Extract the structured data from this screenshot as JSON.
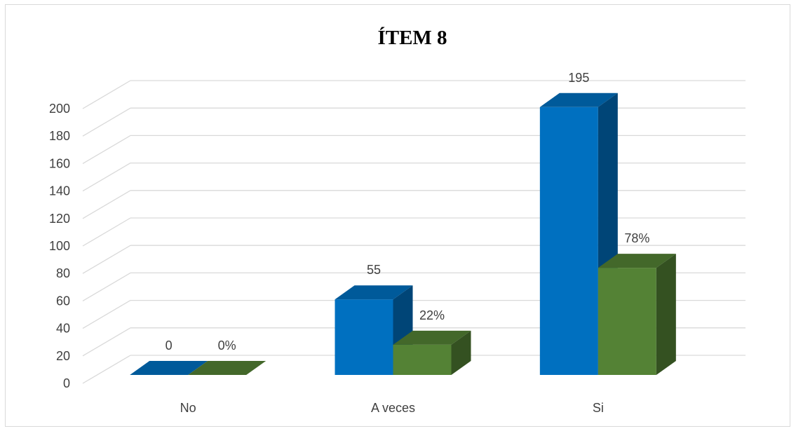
{
  "chart_data": {
    "type": "bar",
    "title": "ÍTEM 8",
    "categories": [
      "No",
      "A veces",
      "Si"
    ],
    "series": [
      {
        "values": [
          0,
          55,
          195
        ],
        "labels": [
          "0",
          "55",
          "195"
        ],
        "color": "#0070C0"
      },
      {
        "values": [
          0,
          22,
          78
        ],
        "labels": [
          "0%",
          "22%",
          "78%"
        ],
        "color": "#548235"
      }
    ],
    "ylim": [
      0,
      200
    ],
    "yticks": [
      0,
      20,
      40,
      60,
      80,
      100,
      120,
      140,
      160,
      180,
      200
    ],
    "grid": true,
    "style": "3d-clustered-column"
  }
}
